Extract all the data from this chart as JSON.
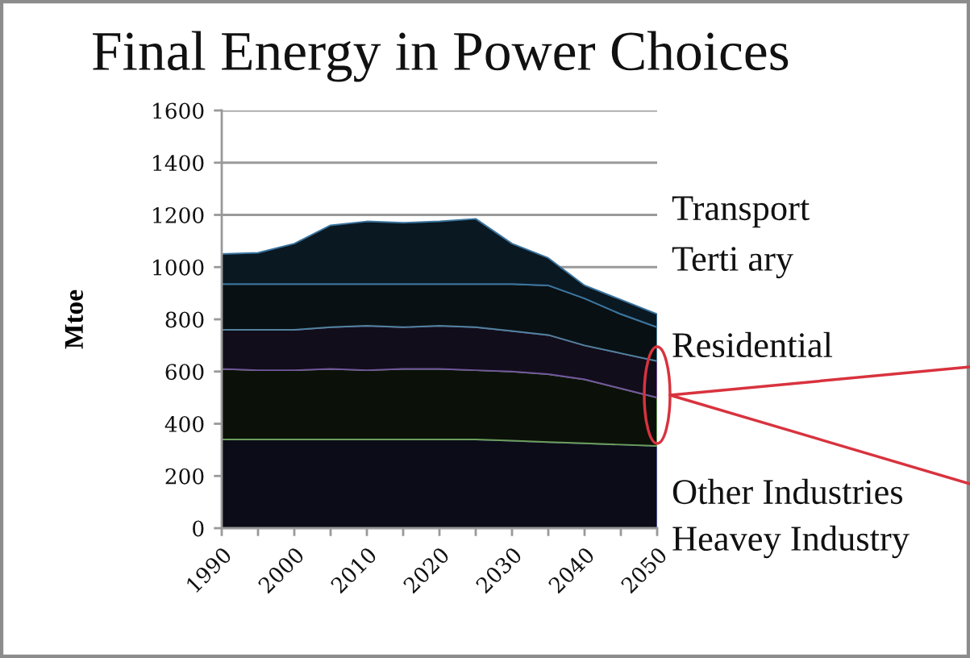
{
  "chart_data": {
    "type": "area",
    "title": "Final Energy in Power Choices",
    "ylabel": "Mtoe",
    "stacked": true,
    "x": [
      1990,
      1995,
      2000,
      2005,
      2010,
      2015,
      2020,
      2025,
      2030,
      2035,
      2040,
      2045,
      2050
    ],
    "series": [
      {
        "name": "Heavey Industry",
        "color": "#0b0c18",
        "values": [
          340,
          340,
          340,
          340,
          340,
          340,
          340,
          340,
          335,
          330,
          325,
          320,
          315
        ]
      },
      {
        "name": "Other Industries",
        "color": "#0b1109",
        "values": [
          270,
          265,
          265,
          270,
          265,
          270,
          270,
          265,
          265,
          260,
          245,
          215,
          185
        ]
      },
      {
        "name": "Residential",
        "color": "#120d1a",
        "values": [
          150,
          155,
          155,
          160,
          170,
          160,
          165,
          165,
          155,
          150,
          130,
          135,
          140
        ]
      },
      {
        "name": "Terti ary",
        "color": "#091014",
        "values": [
          175,
          175,
          175,
          165,
          160,
          165,
          160,
          165,
          180,
          190,
          180,
          150,
          130
        ]
      },
      {
        "name": "Transport",
        "color": "#0a1822",
        "values": [
          115,
          120,
          155,
          225,
          240,
          235,
          240,
          250,
          155,
          105,
          50,
          55,
          50
        ]
      }
    ],
    "xlim": [
      1990,
      2050
    ],
    "xticks": [
      1990,
      {
        "value": 1995,
        "label": null
      },
      2000,
      {
        "value": 2005,
        "label": null
      },
      2010,
      {
        "value": 2015,
        "label": null
      },
      2020,
      {
        "value": 2025,
        "label": null
      },
      2030,
      {
        "value": 2035,
        "label": null
      },
      2040,
      {
        "value": 2045,
        "label": null
      },
      2050
    ],
    "ylim": [
      0,
      1600
    ],
    "yticks": [
      0,
      200,
      400,
      600,
      800,
      1000,
      1200,
      1400,
      1600
    ],
    "grid": "y"
  }
}
